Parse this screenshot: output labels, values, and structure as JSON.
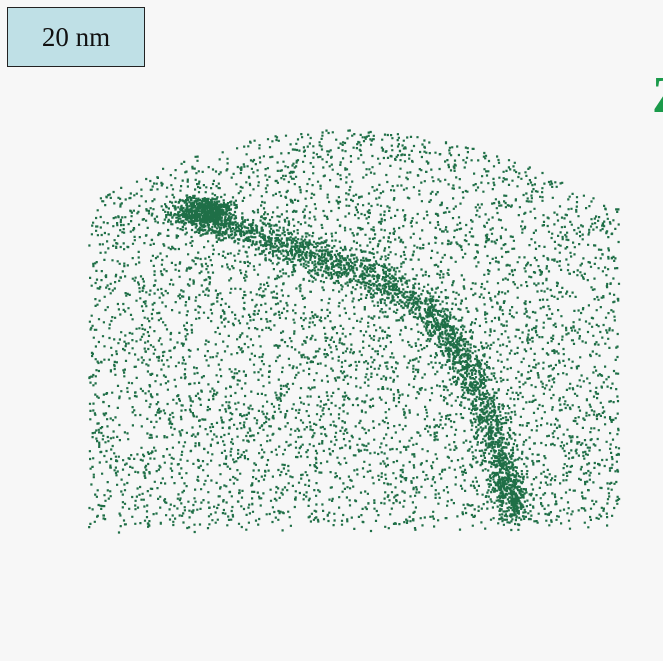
{
  "scale_label": "20 nm",
  "axis_label": "Z"
}
